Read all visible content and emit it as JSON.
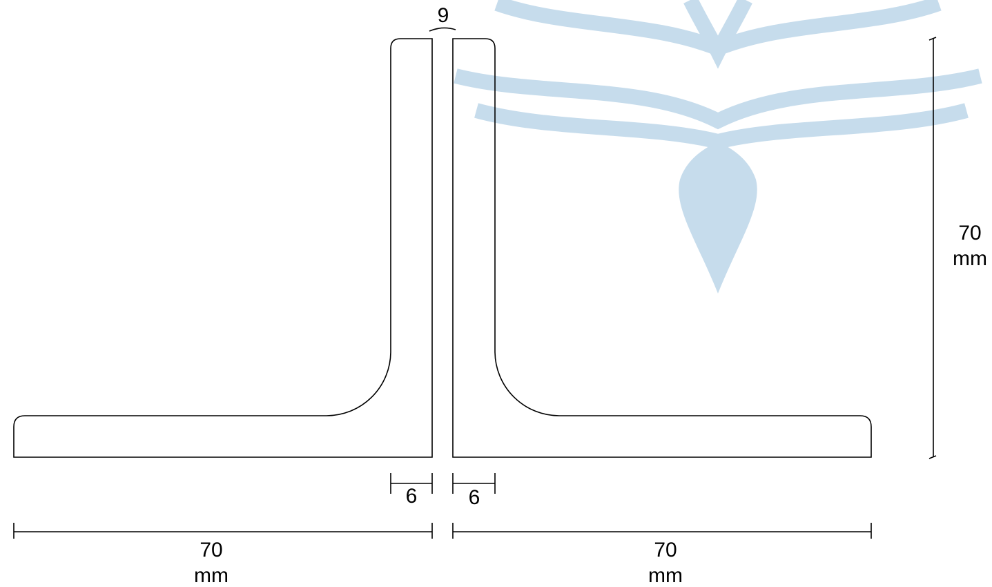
{
  "dimensions": [
    {
      "label": "9"
    },
    {
      "label": "6"
    },
    {
      "label": "6"
    },
    {
      "value": "70",
      "unit": "mm"
    },
    {
      "value": "70",
      "unit": "mm"
    },
    {
      "value": "70",
      "unit": "mm"
    }
  ]
}
